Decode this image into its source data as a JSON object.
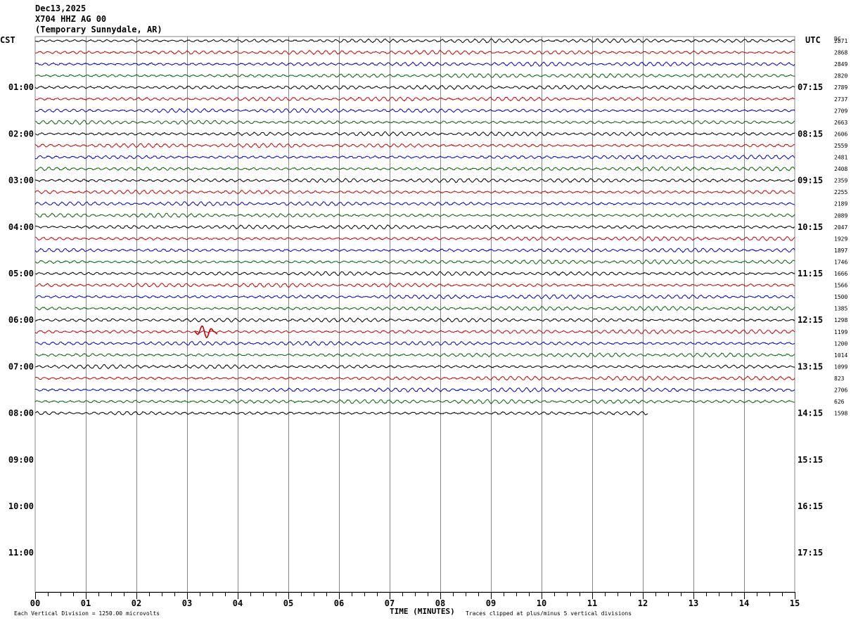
{
  "header": {
    "date": "Dec13,2025",
    "station": "X704 HHZ AG 00",
    "location": "(Temporary Sunnydale, AR)"
  },
  "left_tz": "CST",
  "right_tz": "UTC",
  "dc_label": "DC",
  "footer": {
    "left_note": "Each Vertical Division = 1250.00 microvolts",
    "xlabel": "TIME (MINUTES)",
    "right_note": "Traces clipped at plus/minus 5 vertical divisions"
  },
  "colors": {
    "cycle": [
      "#000000",
      "#cc0000",
      "#0000cc",
      "#006600"
    ],
    "grid": "#888888"
  },
  "chart_data": {
    "type": "line",
    "title": "X704 HHZ AG 00",
    "xlabel": "TIME (MINUTES)",
    "x_ticks": [
      "00",
      "01",
      "02",
      "03",
      "04",
      "05",
      "06",
      "07",
      "08",
      "09",
      "10",
      "11",
      "12",
      "13",
      "14",
      "15"
    ],
    "xlim": [
      0,
      15
    ],
    "left_hour_labels": [
      "01:00",
      "02:00",
      "03:00",
      "04:00",
      "05:00",
      "06:00",
      "07:00",
      "08:00",
      "09:00",
      "10:00",
      "11:00"
    ],
    "right_hour_labels": [
      "07:15",
      "08:15",
      "09:15",
      "10:15",
      "11:15",
      "12:15",
      "13:15",
      "14:15",
      "15:15",
      "16:15",
      "17:15"
    ],
    "dc_offsets": [
      "2871",
      "2868",
      "2849",
      "2820",
      "2789",
      "2737",
      "2709",
      "2663",
      "2606",
      "2559",
      "2481",
      "2408",
      "2359",
      "2255",
      "2189",
      "2089",
      "2047",
      "1929",
      "1897",
      "1746",
      "1666",
      "1566",
      "1500",
      "1385",
      "1298",
      "1199",
      "1200",
      "1014",
      "1099",
      "823",
      "2706",
      "626",
      "1598"
    ],
    "trace_count": 33,
    "last_trace_end_minute": 12.1,
    "event": {
      "trace_index": 25,
      "start_minute": 3.15,
      "end_minute": 3.6
    }
  }
}
